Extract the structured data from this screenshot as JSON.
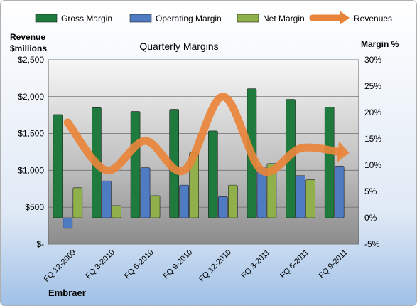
{
  "chart_data": {
    "type": "bar",
    "title": "Quarterly Margins",
    "company": "Embraer",
    "left_axis": {
      "label_line1": "Revenue",
      "label_line2": "$millions",
      "ylim": [
        0,
        2500
      ],
      "ticks": [
        0,
        500,
        1000,
        1500,
        2000,
        2500
      ],
      "tick_labels": [
        "$-",
        "$500",
        "$1,000",
        "$1,500",
        "$2,000",
        "$2,500"
      ]
    },
    "right_axis": {
      "label": "Margin %",
      "ylim": [
        -5,
        30
      ],
      "ticks": [
        -5,
        0,
        5,
        10,
        15,
        20,
        25,
        30
      ],
      "tick_labels": [
        "-5%",
        "0%",
        "5%",
        "10%",
        "15%",
        "20%",
        "25%",
        "30%"
      ]
    },
    "categories": [
      "FQ 12-2009",
      "FQ 3-2010",
      "FQ 6-2010",
      "FQ 9-2010",
      "FQ 12-2010",
      "FQ 3-2011",
      "FQ 6-2011",
      "FQ 9-2011"
    ],
    "series": [
      {
        "name": "Gross Margin",
        "axis": "right",
        "kind": "bar",
        "color": "#1f7a3e",
        "values": [
          19.6,
          20.9,
          20.2,
          20.6,
          16.5,
          24.5,
          22.5,
          21.0
        ]
      },
      {
        "name": "Operating Margin",
        "axis": "right",
        "kind": "bar",
        "color": "#4f7bc3",
        "values": [
          -2.0,
          7.0,
          9.5,
          6.2,
          4.0,
          9.5,
          8.0,
          9.8
        ]
      },
      {
        "name": "Net Margin",
        "axis": "right",
        "kind": "bar",
        "color": "#8fb04a",
        "values": [
          5.7,
          2.3,
          4.2,
          12.4,
          6.2,
          10.3,
          7.2,
          null
        ]
      },
      {
        "name": "Revenues",
        "axis": "left",
        "kind": "line",
        "color": "#e8843a",
        "values": [
          1650,
          1000,
          1400,
          1000,
          2000,
          1000,
          1300,
          1250
        ]
      }
    ],
    "legend": {
      "position": "top"
    },
    "grid": true
  }
}
